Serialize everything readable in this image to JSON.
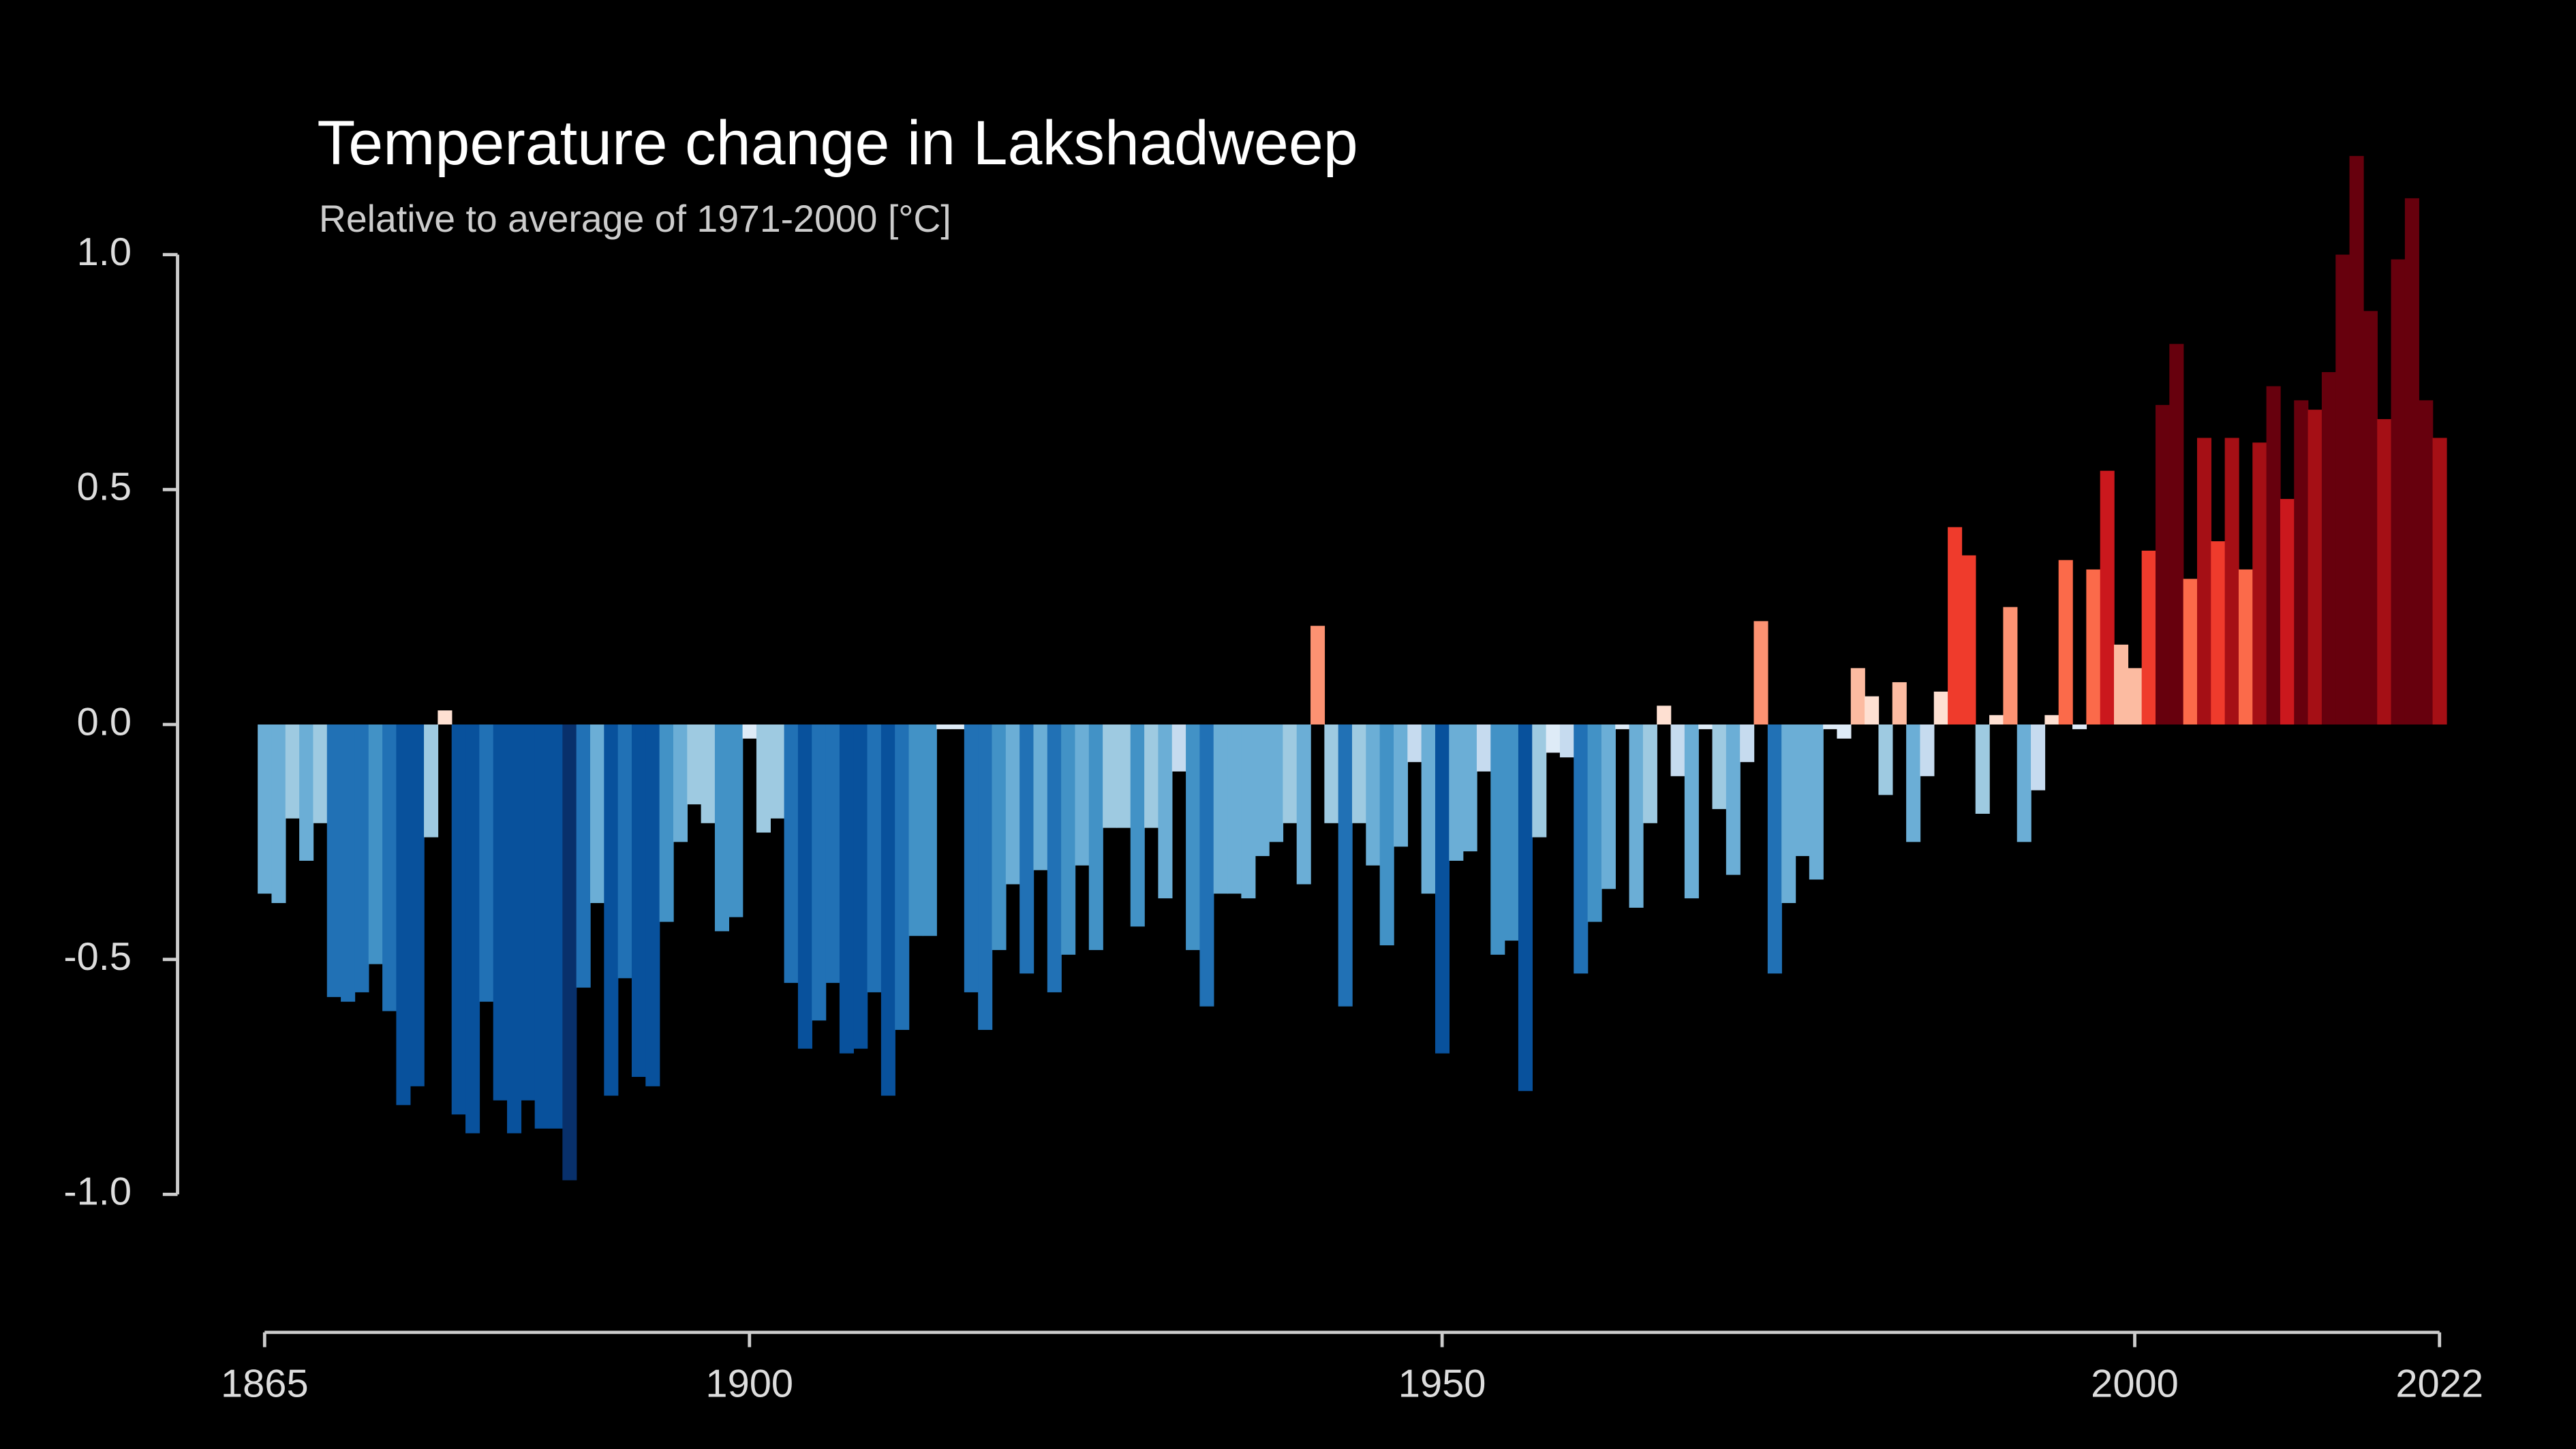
{
  "chart_data": {
    "type": "bar",
    "title": "Temperature change in Lakshadweep",
    "subtitle": "Relative to average of 1971-2000  [°C]",
    "x": [
      1865,
      1866,
      1867,
      1868,
      1869,
      1870,
      1871,
      1872,
      1873,
      1874,
      1875,
      1876,
      1877,
      1878,
      1879,
      1880,
      1881,
      1882,
      1883,
      1884,
      1885,
      1886,
      1887,
      1888,
      1889,
      1890,
      1891,
      1892,
      1893,
      1894,
      1895,
      1896,
      1897,
      1898,
      1899,
      1900,
      1901,
      1902,
      1903,
      1904,
      1905,
      1906,
      1907,
      1908,
      1909,
      1910,
      1911,
      1912,
      1913,
      1914,
      1915,
      1916,
      1917,
      1918,
      1919,
      1920,
      1921,
      1922,
      1923,
      1924,
      1925,
      1926,
      1927,
      1928,
      1929,
      1930,
      1931,
      1932,
      1933,
      1934,
      1935,
      1936,
      1937,
      1938,
      1939,
      1940,
      1941,
      1942,
      1943,
      1944,
      1945,
      1946,
      1947,
      1948,
      1949,
      1950,
      1951,
      1952,
      1953,
      1954,
      1955,
      1956,
      1957,
      1958,
      1959,
      1960,
      1961,
      1962,
      1963,
      1964,
      1965,
      1966,
      1967,
      1968,
      1969,
      1970,
      1971,
      1972,
      1973,
      1974,
      1975,
      1976,
      1977,
      1978,
      1979,
      1980,
      1981,
      1982,
      1983,
      1984,
      1985,
      1986,
      1987,
      1988,
      1989,
      1990,
      1991,
      1992,
      1993,
      1994,
      1995,
      1996,
      1997,
      1998,
      1999,
      2000,
      2001,
      2002,
      2003,
      2004,
      2005,
      2006,
      2007,
      2008,
      2009,
      2010,
      2011,
      2012,
      2013,
      2014,
      2015,
      2016,
      2017,
      2018,
      2019,
      2020,
      2021,
      2022
    ],
    "values": [
      -0.36,
      -0.38,
      -0.2,
      -0.29,
      -0.21,
      -0.58,
      -0.59,
      -0.57,
      -0.51,
      -0.61,
      -0.81,
      -0.77,
      -0.24,
      0.03,
      -0.83,
      -0.87,
      -0.59,
      -0.8,
      -0.87,
      -0.8,
      -0.86,
      -0.86,
      -0.97,
      -0.56,
      -0.38,
      -0.79,
      -0.54,
      -0.75,
      -0.77,
      -0.42,
      -0.25,
      -0.17,
      -0.21,
      -0.44,
      -0.41,
      -0.03,
      -0.23,
      -0.2,
      -0.55,
      -0.69,
      -0.63,
      -0.55,
      -0.7,
      -0.69,
      -0.57,
      -0.79,
      -0.65,
      -0.45,
      -0.45,
      -0.01,
      -0.01,
      -0.57,
      -0.65,
      -0.48,
      -0.34,
      -0.53,
      -0.31,
      -0.57,
      -0.49,
      -0.3,
      -0.48,
      -0.22,
      -0.22,
      -0.43,
      -0.22,
      -0.37,
      -0.1,
      -0.48,
      -0.6,
      -0.36,
      -0.36,
      -0.37,
      -0.28,
      -0.25,
      -0.21,
      -0.34,
      0.21,
      -0.21,
      -0.6,
      -0.21,
      -0.3,
      -0.47,
      -0.26,
      -0.08,
      -0.36,
      -0.7,
      -0.29,
      -0.27,
      -0.1,
      -0.49,
      -0.46,
      -0.78,
      -0.24,
      -0.06,
      -0.07,
      -0.53,
      -0.42,
      -0.35,
      -0.01,
      -0.39,
      -0.21,
      0.04,
      -0.11,
      -0.37,
      -0.01,
      -0.18,
      -0.32,
      -0.08,
      0.22,
      -0.53,
      -0.38,
      -0.28,
      -0.33,
      -0.01,
      -0.03,
      0.12,
      0.06,
      -0.15,
      0.09,
      -0.25,
      -0.11,
      0.07,
      0.42,
      0.36,
      -0.19,
      0.02,
      0.25,
      -0.25,
      -0.14,
      0.02,
      0.35,
      -0.01,
      0.33,
      0.54,
      0.17,
      0.12,
      0.37,
      0.68,
      0.81,
      0.31,
      0.61,
      0.39,
      0.61,
      0.33,
      0.6,
      0.72,
      0.48,
      0.69,
      0.67,
      0.75,
      1.0,
      1.21,
      0.88,
      0.65,
      0.99,
      1.12,
      0.69,
      0.61
    ],
    "xlim": [
      1865,
      2022
    ],
    "xticks": [
      1865,
      1900,
      1950,
      2000,
      2022
    ],
    "ylim": [
      -1.0,
      1.0
    ],
    "yticks": [
      {
        "value": 1.0,
        "label": "1.0"
      },
      {
        "value": 0.5,
        "label": "0.5"
      },
      {
        "value": 0.0,
        "label": "0.0"
      },
      {
        "value": -0.5,
        "label": "-0.5"
      },
      {
        "value": -1.0,
        "label": "-1.0"
      }
    ],
    "grid": false
  }
}
